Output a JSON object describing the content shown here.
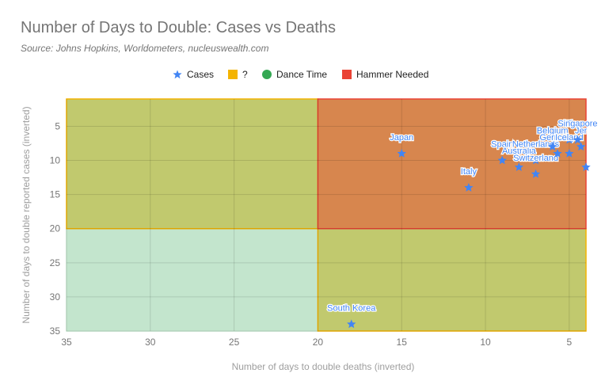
{
  "chart_data": {
    "type": "scatter",
    "title": "Number of Days to Double: Cases vs Deaths",
    "subtitle": "Source: Johns Hopkins, Worldometers, nucleuswealth.com",
    "xlabel": "Number of days to double deaths (inverted)",
    "ylabel": "Number of days to double reported cases (inverted)",
    "x_reversed": true,
    "y_reversed": true,
    "xlim": [
      35,
      4
    ],
    "ylim": [
      1,
      35
    ],
    "x_ticks": [
      35,
      30,
      25,
      20,
      15,
      10,
      5
    ],
    "y_ticks": [
      5,
      10,
      15,
      20,
      25,
      30,
      35
    ],
    "grid": true,
    "legend_position": "top",
    "legend": [
      {
        "label": "Cases",
        "symbol": "star",
        "color": "#4285f4"
      },
      {
        "label": "?",
        "symbol": "square",
        "color": "#f4b400"
      },
      {
        "label": "Dance Time",
        "symbol": "circle",
        "color": "#34a853"
      },
      {
        "label": "Hammer Needed",
        "symbol": "square",
        "color": "#ea4335"
      }
    ],
    "regions": [
      {
        "name": "Dance Time",
        "x": [
          35,
          20
        ],
        "y": [
          20,
          35
        ],
        "fill": "#c3e5cd",
        "stroke": "#c3e5cd"
      },
      {
        "name": "?",
        "x": [
          35,
          20
        ],
        "y": [
          1,
          20
        ],
        "fill": "#c1c96e",
        "stroke": "#f4b400"
      },
      {
        "name": "?",
        "x": [
          20,
          4
        ],
        "y": [
          20,
          35
        ],
        "fill": "#c1c96e",
        "stroke": "#f4b400"
      },
      {
        "name": "Hammer Needed",
        "x": [
          20,
          4
        ],
        "y": [
          1,
          20
        ],
        "fill": "#d7864e",
        "stroke": "#ea4335"
      }
    ],
    "series": [
      {
        "name": "Cases",
        "color": "#4285f4",
        "points": [
          {
            "label": "Japan",
            "x": 15,
            "y": 9
          },
          {
            "label": "Italy",
            "x": 11,
            "y": 14
          },
          {
            "label": "Spain",
            "x": 9,
            "y": 10
          },
          {
            "label": "Australia",
            "x": 8,
            "y": 11
          },
          {
            "label": "Netherlands",
            "x": 7,
            "y": 10
          },
          {
            "label": "Switzerland",
            "x": 7,
            "y": 12
          },
          {
            "label": "Belgium",
            "x": 6,
            "y": 8
          },
          {
            "label": "Germany",
            "x": 5.7,
            "y": 9
          },
          {
            "label": "Fi",
            "x": 5,
            "y": 7
          },
          {
            "label": "Iceland",
            "x": 5,
            "y": 9
          },
          {
            "label": "Singapore",
            "x": 4.5,
            "y": 7
          },
          {
            "label": "Jer",
            "x": 4.3,
            "y": 8
          },
          {
            "label": "South Korea",
            "x": 18,
            "y": 34
          },
          {
            "label": "",
            "x": 4,
            "y": 11
          }
        ]
      }
    ]
  }
}
